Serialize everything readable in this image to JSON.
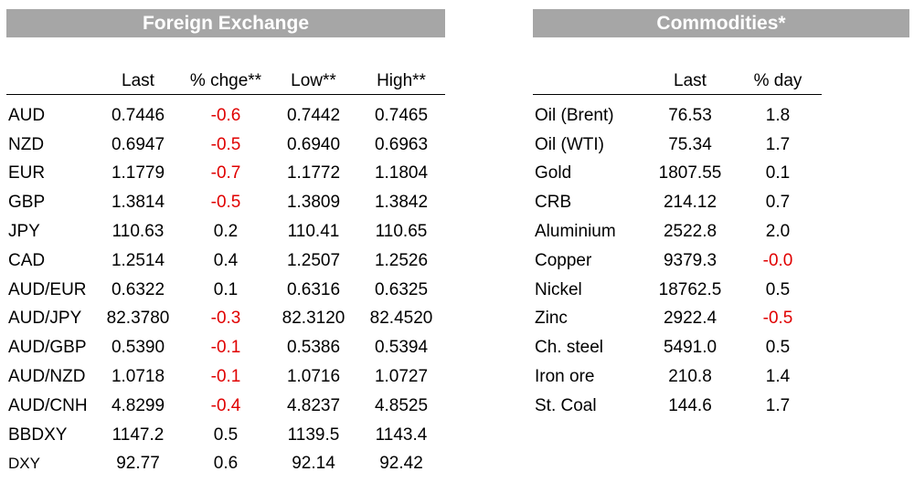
{
  "fx": {
    "title": "Foreign Exchange",
    "columns": [
      "",
      "Last",
      "% chge**",
      "Low**",
      "High**"
    ],
    "rows": [
      {
        "name": "AUD",
        "last": "0.7446",
        "chg": "-0.6",
        "low": "0.7442",
        "high": "0.7465",
        "chg_negative": true
      },
      {
        "name": "NZD",
        "last": "0.6947",
        "chg": "-0.5",
        "low": "0.6940",
        "high": "0.6963",
        "chg_negative": true
      },
      {
        "name": "EUR",
        "last": "1.1779",
        "chg": "-0.7",
        "low": "1.1772",
        "high": "1.1804",
        "chg_negative": true
      },
      {
        "name": "GBP",
        "last": "1.3814",
        "chg": "-0.5",
        "low": "1.3809",
        "high": "1.3842",
        "chg_negative": true
      },
      {
        "name": "JPY",
        "last": "110.63",
        "chg": "0.2",
        "low": "110.41",
        "high": "110.65",
        "chg_negative": false
      },
      {
        "name": "CAD",
        "last": "1.2514",
        "chg": "0.4",
        "low": "1.2507",
        "high": "1.2526",
        "chg_negative": false
      },
      {
        "name": "AUD/EUR",
        "last": "0.6322",
        "chg": "0.1",
        "low": "0.6316",
        "high": "0.6325",
        "chg_negative": false
      },
      {
        "name": "AUD/JPY",
        "last": "82.3780",
        "chg": "-0.3",
        "low": "82.3120",
        "high": "82.4520",
        "chg_negative": true
      },
      {
        "name": "AUD/GBP",
        "last": "0.5390",
        "chg": "-0.1",
        "low": "0.5386",
        "high": "0.5394",
        "chg_negative": true
      },
      {
        "name": "AUD/NZD",
        "last": "1.0718",
        "chg": "-0.1",
        "low": "1.0716",
        "high": "1.0727",
        "chg_negative": true
      },
      {
        "name": "AUD/CNH",
        "last": "4.8299",
        "chg": "-0.4",
        "low": "4.8237",
        "high": "4.8525",
        "chg_negative": true
      },
      {
        "name": "BBDXY",
        "last": "1147.2",
        "chg": "0.5",
        "low": "1139.5",
        "high": "1143.4",
        "chg_negative": false
      },
      {
        "name": "DXY",
        "last": "92.77",
        "chg": "0.6",
        "low": "92.14",
        "high": "92.42",
        "chg_negative": false
      }
    ]
  },
  "commodities": {
    "title": "Commodities*",
    "columns": [
      "",
      "Last",
      "% day"
    ],
    "rows": [
      {
        "name": "Oil (Brent)",
        "last": "76.53",
        "day": "1.8",
        "day_negative": false
      },
      {
        "name": "Oil (WTI)",
        "last": "75.34",
        "day": "1.7",
        "day_negative": false
      },
      {
        "name": "Gold",
        "last": "1807.55",
        "day": "0.1",
        "day_negative": false
      },
      {
        "name": "CRB",
        "last": "214.12",
        "day": "0.7",
        "day_negative": false
      },
      {
        "name": "Aluminium",
        "last": "2522.8",
        "day": "2.0",
        "day_negative": false
      },
      {
        "name": "Copper",
        "last": "9379.3",
        "day": "-0.0",
        "day_negative": true
      },
      {
        "name": "Nickel",
        "last": "18762.5",
        "day": "0.5",
        "day_negative": false
      },
      {
        "name": "Zinc",
        "last": "2922.4",
        "day": "-0.5",
        "day_negative": true
      },
      {
        "name": "Ch. steel",
        "last": "5491.0",
        "day": "0.5",
        "day_negative": false
      },
      {
        "name": "Iron ore",
        "last": "210.8",
        "day": "1.4",
        "day_negative": false
      },
      {
        "name": "St. Coal",
        "last": "144.6",
        "day": "1.7",
        "day_negative": false
      }
    ]
  },
  "colors": {
    "header_bg": "#a6a6a6",
    "header_text": "#ffffff",
    "negative": "#e00000"
  }
}
